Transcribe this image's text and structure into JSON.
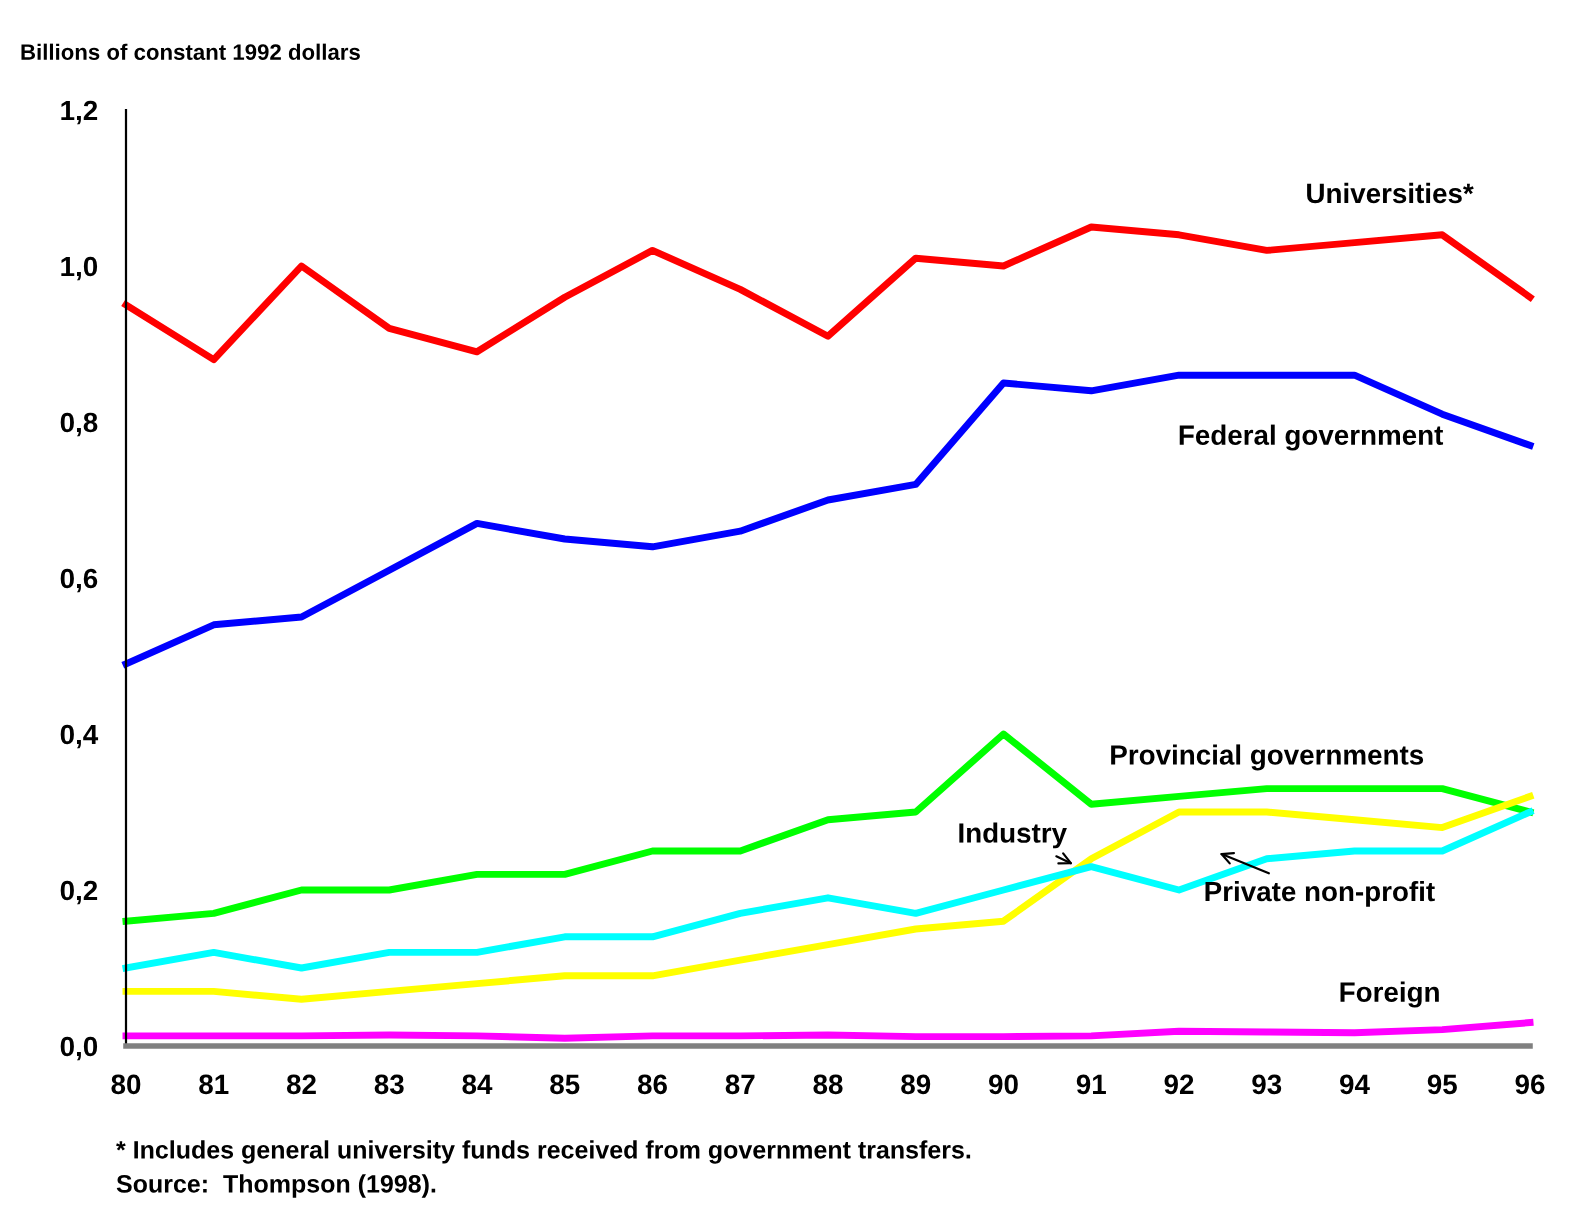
{
  "chart_data": {
    "type": "line",
    "ylabel": "Billions of constant 1992 dollars",
    "categories": [
      "80",
      "81",
      "82",
      "83",
      "84",
      "85",
      "86",
      "87",
      "88",
      "89",
      "90",
      "91",
      "92",
      "93",
      "94",
      "95",
      "96"
    ],
    "series": [
      {
        "name": "Universities*",
        "color": "#ff0000",
        "values": [
          0.95,
          0.88,
          1.0,
          0.92,
          0.89,
          0.96,
          1.02,
          0.97,
          0.91,
          1.01,
          1.0,
          1.05,
          1.04,
          1.02,
          1.03,
          1.04,
          0.96
        ]
      },
      {
        "name": "Federal government",
        "color": "#0000ff",
        "values": [
          0.49,
          0.54,
          0.55,
          0.61,
          0.67,
          0.65,
          0.64,
          0.66,
          0.7,
          0.72,
          0.85,
          0.84,
          0.86,
          0.86,
          0.86,
          0.81,
          0.77
        ]
      },
      {
        "name": "Provincial governments",
        "color": "#00ff00",
        "values": [
          0.16,
          0.17,
          0.2,
          0.2,
          0.22,
          0.22,
          0.25,
          0.25,
          0.29,
          0.3,
          0.4,
          0.31,
          0.32,
          0.33,
          0.33,
          0.33,
          0.3
        ]
      },
      {
        "name": "Industry",
        "color": "#ffff00",
        "values": [
          0.07,
          0.07,
          0.06,
          0.07,
          0.08,
          0.09,
          0.09,
          0.11,
          0.13,
          0.15,
          0.16,
          0.24,
          0.3,
          0.3,
          0.29,
          0.28,
          0.32
        ]
      },
      {
        "name": "Private non-profit",
        "color": "#00ffff",
        "values": [
          0.1,
          0.12,
          0.1,
          0.12,
          0.12,
          0.14,
          0.14,
          0.17,
          0.19,
          0.17,
          0.2,
          0.23,
          0.2,
          0.24,
          0.25,
          0.25,
          0.3
        ]
      },
      {
        "name": "Foreign",
        "color": "#ff00ff",
        "values": [
          0.013,
          0.013,
          0.013,
          0.014,
          0.013,
          0.01,
          0.013,
          0.013,
          0.014,
          0.012,
          0.012,
          0.013,
          0.019,
          0.018,
          0.017,
          0.021,
          0.03
        ]
      }
    ],
    "ylim": [
      0,
      1.2
    ],
    "yticks": [
      {
        "value": 0,
        "label": "0,0"
      },
      {
        "value": 0.2,
        "label": "0,2"
      },
      {
        "value": 0.4,
        "label": "0,4"
      },
      {
        "value": 0.6,
        "label": "0,6"
      },
      {
        "value": 0.8,
        "label": "0,8"
      },
      {
        "value": 1.0,
        "label": "1,0"
      },
      {
        "value": 1.2,
        "label": "1,2"
      }
    ],
    "grid": false,
    "legend": false,
    "marker": "none",
    "line_style": "solid",
    "annotations": [
      "* Includes general university funds received from government transfers.",
      "Source:  Thompson (1998)."
    ]
  }
}
